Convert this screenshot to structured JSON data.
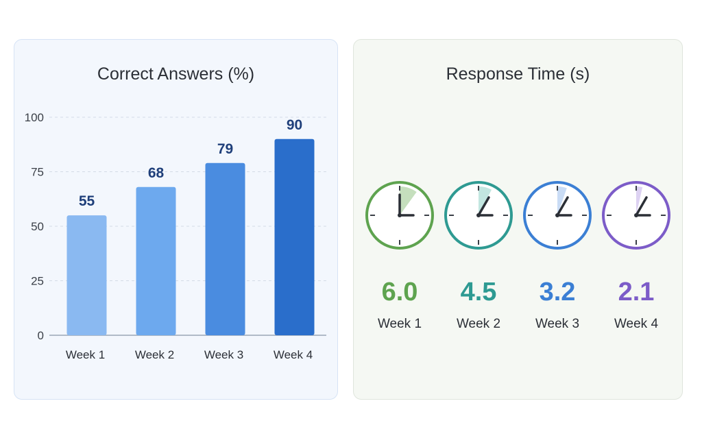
{
  "chart_data": [
    {
      "type": "bar",
      "title": "Correct Answers (%)",
      "categories": [
        "Week 1",
        "Week 2",
        "Week 3",
        "Week 4"
      ],
      "values": [
        55,
        68,
        79,
        90
      ],
      "data_labels": [
        "55",
        "68",
        "79",
        "90"
      ],
      "ylim": [
        0,
        100
      ],
      "yticks": [
        0,
        25,
        50,
        75,
        100
      ],
      "ytick_labels": [
        "0",
        "25",
        "50",
        "75",
        "100"
      ],
      "grid": true,
      "colors": [
        "#8ab9f1",
        "#6da9ee",
        "#4a8ce0",
        "#2a6ecb"
      ],
      "label_color": "#1f3f7a"
    },
    {
      "type": "gauge",
      "title": "Response Time (s)",
      "categories": [
        "Week 1",
        "Week 2",
        "Week 3",
        "Week 4"
      ],
      "values": [
        6.0,
        4.5,
        3.2,
        2.1
      ],
      "value_labels": [
        "6.0",
        "4.5",
        "3.2",
        "2.1"
      ],
      "colors": [
        "#5ea34f",
        "#2e9a92",
        "#3b7fd4",
        "#7c5cc8"
      ],
      "fill_colors": [
        "#c5dfbd",
        "#c2e6e0",
        "#c9dcf5",
        "#ddd2f2"
      ]
    }
  ]
}
